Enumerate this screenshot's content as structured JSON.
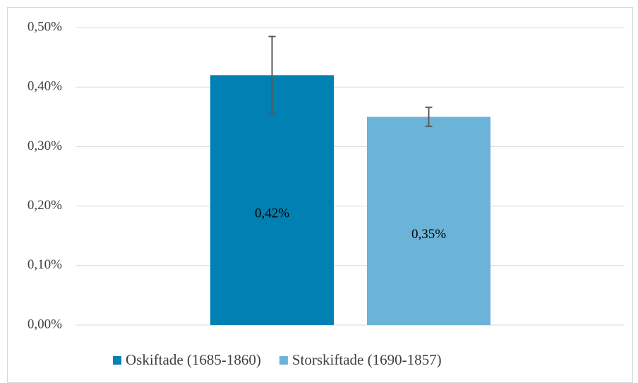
{
  "chart_data": {
    "type": "bar",
    "categories": [
      null
    ],
    "series": [
      {
        "name": "Oskiftade (1685-1860)",
        "color": "#0080b3",
        "values": [
          0.42
        ],
        "errors": [
          0.065
        ],
        "value_labels": [
          "0,42%"
        ]
      },
      {
        "name": "Storskiftade (1690-1857)",
        "color": "#6bb3d8",
        "values": [
          0.35
        ],
        "errors": [
          0.016
        ],
        "value_labels": [
          "0,35%"
        ]
      }
    ],
    "ylim": [
      0,
      0.5
    ],
    "yticks": [
      {
        "value": 0,
        "label": "0,00%"
      },
      {
        "value": 0.1,
        "label": "0,10%"
      },
      {
        "value": 0.2,
        "label": "0,20%"
      },
      {
        "value": 0.3,
        "label": "0,30%"
      },
      {
        "value": 0.4,
        "label": "0,40%"
      },
      {
        "value": 0.5,
        "label": "0,50%"
      }
    ],
    "grid": true,
    "legend": "bottom"
  }
}
